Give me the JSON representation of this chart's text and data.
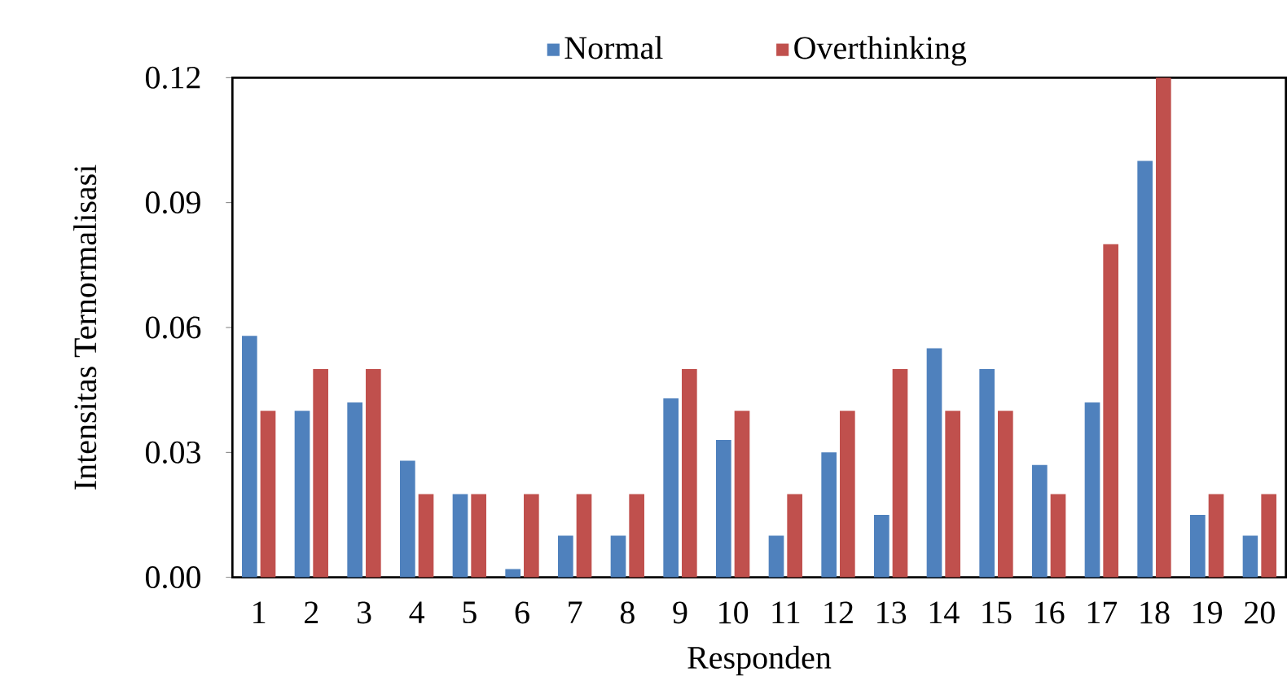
{
  "chart_data": {
    "type": "bar",
    "xlabel": "Responden",
    "ylabel": "Intensitas Ternormalisasi",
    "categories": [
      "1",
      "2",
      "3",
      "4",
      "5",
      "6",
      "7",
      "8",
      "9",
      "10",
      "11",
      "12",
      "13",
      "14",
      "15",
      "16",
      "17",
      "18",
      "19",
      "20"
    ],
    "series": [
      {
        "name": "Normal",
        "color": "#4f81bd",
        "values": [
          0.058,
          0.04,
          0.042,
          0.028,
          0.02,
          0.002,
          0.01,
          0.01,
          0.043,
          0.033,
          0.01,
          0.03,
          0.015,
          0.055,
          0.05,
          0.027,
          0.042,
          0.1,
          0.015,
          0.01
        ]
      },
      {
        "name": "Overthinking",
        "color": "#c0504d",
        "values": [
          0.04,
          0.05,
          0.05,
          0.02,
          0.02,
          0.02,
          0.02,
          0.02,
          0.05,
          0.04,
          0.02,
          0.04,
          0.05,
          0.04,
          0.04,
          0.02,
          0.08,
          0.12,
          0.02,
          0.02
        ]
      }
    ],
    "ylim": [
      0,
      0.12
    ],
    "yticks": [
      {
        "value": 0,
        "label": "0.00"
      },
      0.03,
      0.06,
      0.09,
      0.12
    ],
    "grid": false,
    "legend": "top"
  }
}
